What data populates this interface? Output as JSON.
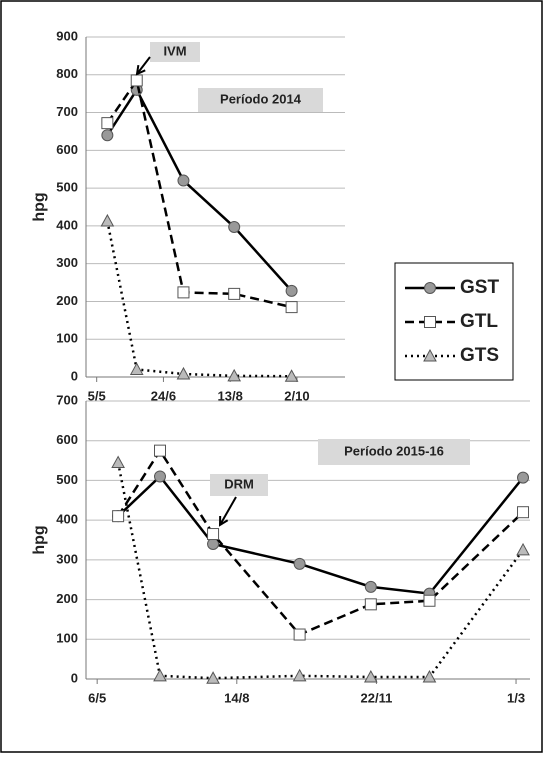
{
  "chart_data": [
    {
      "type": "line",
      "ylabel": "hpg",
      "annotations": [
        "IVM",
        "Período 2014"
      ],
      "x": [
        133,
        155,
        190,
        228,
        271
      ],
      "xlim": [
        117,
        311
      ],
      "xticks": [
        {
          "value": 125,
          "label": "5/5"
        },
        {
          "value": 175,
          "label": "24/6"
        },
        {
          "value": 225,
          "label": "13/8"
        },
        {
          "value": 275,
          "label": "2/10"
        }
      ],
      "ylim": [
        0,
        900
      ],
      "yticks": [
        0,
        100,
        200,
        300,
        400,
        500,
        600,
        700,
        800,
        900
      ],
      "grid": true,
      "series": [
        {
          "name": "GST",
          "color": "#000000",
          "marker": "circle",
          "dash": "solid",
          "values": [
            640,
            760,
            520,
            397,
            228
          ]
        },
        {
          "name": "GTL",
          "color": "#000000",
          "marker": "square",
          "dash": "dashed",
          "values": [
            672,
            785,
            224,
            220,
            185
          ]
        },
        {
          "name": "GTS",
          "color": "#000000",
          "marker": "triangle",
          "dash": "dotted",
          "values": [
            413,
            20,
            8,
            3,
            2
          ]
        }
      ]
    },
    {
      "type": "line",
      "ylabel": "hpg",
      "annotations": [
        "DRM",
        "Período 2015-16"
      ],
      "x": [
        141,
        171,
        209,
        271,
        322,
        364,
        431
      ],
      "xlim": [
        118,
        436
      ],
      "xticks": [
        {
          "value": 126,
          "label": "6/5"
        },
        {
          "value": 226,
          "label": "14/8"
        },
        {
          "value": 326,
          "label": "22/11"
        },
        {
          "value": 426,
          "label": "1/3"
        }
      ],
      "ylim": [
        0,
        700
      ],
      "yticks": [
        0,
        100,
        200,
        300,
        400,
        500,
        600,
        700
      ],
      "grid": true,
      "series": [
        {
          "color": "#000000",
          "marker": "circle",
          "dash": "solid",
          "values": [
            410,
            510,
            340,
            290,
            232,
            215,
            507
          ]
        },
        {
          "color": "#000000",
          "marker": "square",
          "dash": "dashed",
          "values": [
            410,
            575,
            365,
            112,
            188,
            197,
            420
          ]
        },
        {
          "color": "#000000",
          "marker": "triangle",
          "dash": "dotted",
          "values": [
            545,
            8,
            2,
            8,
            5,
            5,
            325
          ]
        }
      ]
    }
  ]
}
